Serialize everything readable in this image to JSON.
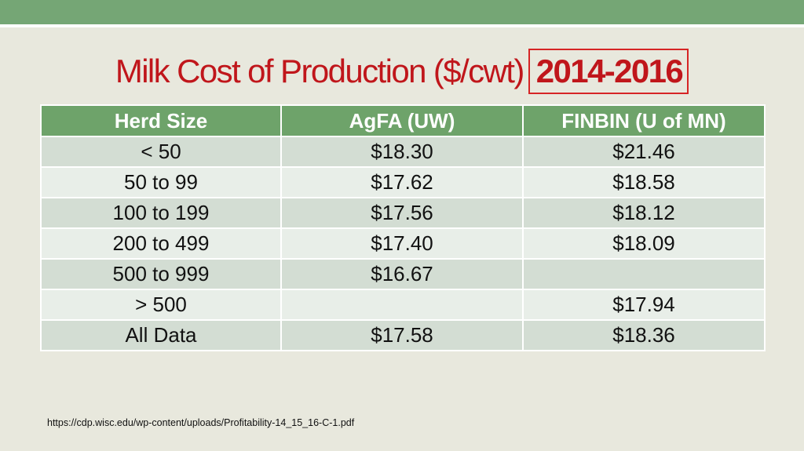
{
  "slide": {
    "title_main": "Milk Cost of Production ($/cwt)",
    "title_year": "2014-2016",
    "source": "https://cdp.wisc.edu/wp-content/uploads/Profitability-14_15_16-C-1.pdf",
    "colors": {
      "header_bar": "#75a675",
      "table_header": "#6ea36a",
      "title_red": "#c0161b",
      "highlight_box": "#d62525"
    }
  },
  "table": {
    "headers": [
      "Herd Size",
      "AgFA (UW)",
      "FINBIN (U of MN)"
    ],
    "rows": [
      [
        "< 50",
        "$18.30",
        "$21.46"
      ],
      [
        "50 to 99",
        "$17.62",
        "$18.58"
      ],
      [
        "100 to 199",
        "$17.56",
        "$18.12"
      ],
      [
        "200 to 499",
        "$17.40",
        "$18.09"
      ],
      [
        "500 to 999",
        "$16.67",
        ""
      ],
      [
        "> 500",
        "",
        "$17.94"
      ],
      [
        "All Data",
        "$17.58",
        "$18.36"
      ]
    ]
  }
}
